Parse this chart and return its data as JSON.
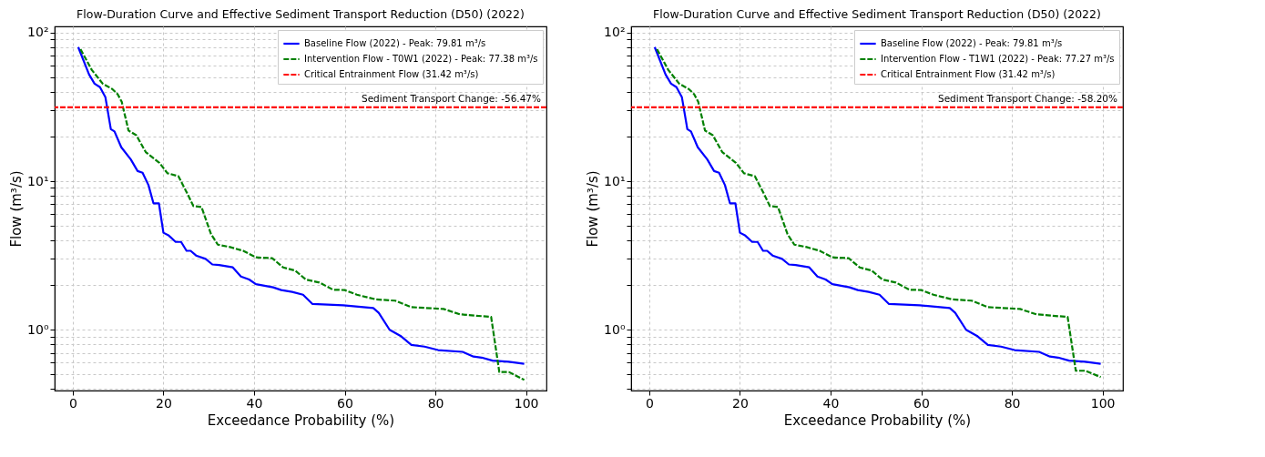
{
  "chart_data": [
    {
      "type": "line",
      "title": "Flow-Duration Curve and Effective Sediment Transport Reduction (D50) (2022)",
      "xlabel": "Exceedance Probability (%)",
      "ylabel": "Flow (m³/s)",
      "log": "y",
      "grid": true,
      "legend": "top right",
      "xlim": [
        -4,
        104.5
      ],
      "xticks": [
        0,
        20,
        40,
        60,
        80,
        100
      ],
      "ylim": [
        0.39,
        110
      ],
      "yticks": [
        {
          "value": 0.4,
          "label": null
        },
        {
          "value": 0.5,
          "label": null
        },
        {
          "value": 0.6,
          "label": null
        },
        {
          "value": 0.7,
          "label": null
        },
        {
          "value": 0.8,
          "label": null
        },
        {
          "value": 0.9,
          "label": null
        },
        {
          "value": 1,
          "label": "10⁰"
        },
        {
          "value": 2,
          "label": null
        },
        {
          "value": 3,
          "label": null
        },
        {
          "value": 4,
          "label": null
        },
        {
          "value": 5,
          "label": null
        },
        {
          "value": 6,
          "label": null
        },
        {
          "value": 7,
          "label": null
        },
        {
          "value": 8,
          "label": null
        },
        {
          "value": 9,
          "label": null
        },
        {
          "value": 10,
          "label": "10¹"
        },
        {
          "value": 20,
          "label": null
        },
        {
          "value": 30,
          "label": null
        },
        {
          "value": 40,
          "label": null
        },
        {
          "value": 50,
          "label": null
        },
        {
          "value": 60,
          "label": null
        },
        {
          "value": 70,
          "label": null
        },
        {
          "value": 80,
          "label": null
        },
        {
          "value": 90,
          "label": null
        },
        {
          "value": 100,
          "label": "10²"
        }
      ],
      "series": [
        {
          "name": "Baseline Flow (2022) - Peak: 79.81 m³/s",
          "color": "#0000ff",
          "line_style": "solid",
          "x": [
            1.2,
            3.6,
            4.8,
            6.0,
            7.2,
            8.4,
            9.2,
            10.7,
            12.8,
            14.3,
            15.4,
            16.7,
            17.8,
            19.0,
            20.0,
            21.2,
            22.7,
            23.9,
            25.1,
            26.0,
            27.2,
            29.3,
            30.8,
            32.3,
            35.3,
            37.1,
            38.9,
            40.4,
            44.2,
            46.0,
            48.4,
            50.8,
            52.9,
            59.7,
            66.3,
            67.5,
            69.9,
            72.3,
            74.7,
            77.6,
            80.6,
            86.0,
            88.4,
            90.2,
            92.6,
            96.2,
            99.6
          ],
          "values": [
            79.8,
            52.2,
            45.3,
            42.9,
            36.7,
            22.4,
            21.6,
            16.9,
            14.0,
            11.7,
            11.4,
            9.4,
            7.1,
            7.1,
            4.5,
            4.3,
            3.9,
            3.9,
            3.4,
            3.4,
            3.16,
            3.0,
            2.75,
            2.73,
            2.63,
            2.28,
            2.18,
            2.03,
            1.93,
            1.85,
            1.8,
            1.72,
            1.49,
            1.46,
            1.4,
            1.3,
            1.0,
            0.91,
            0.79,
            0.77,
            0.73,
            0.71,
            0.66,
            0.65,
            0.62,
            0.61,
            0.59
          ]
        },
        {
          "name": "Intervention Flow - T0W1 (2022) - Peak: 77.38 m³/s",
          "color": "#008000",
          "line_style": "dashed",
          "x": [
            1.7,
            4.2,
            6.6,
            8.7,
            9.9,
            10.8,
            12.3,
            14.0,
            16.1,
            19.1,
            20.9,
            23.3,
            25.4,
            26.6,
            28.4,
            30.5,
            32.0,
            34.7,
            37.6,
            40.4,
            44.0,
            46.4,
            49.1,
            51.4,
            54.4,
            57.4,
            60.0,
            62.7,
            66.9,
            71.1,
            74.7,
            81.8,
            85.4,
            92.3,
            94.1,
            96.2,
            99.6
          ],
          "values": [
            77.4,
            56,
            45.3,
            41.7,
            38.5,
            34.2,
            21.9,
            20.4,
            15.7,
            13.3,
            11.3,
            10.8,
            8.1,
            6.8,
            6.7,
            4.4,
            3.74,
            3.6,
            3.4,
            3.07,
            3.03,
            2.63,
            2.5,
            2.18,
            2.08,
            1.86,
            1.85,
            1.72,
            1.6,
            1.57,
            1.42,
            1.38,
            1.27,
            1.22,
            0.52,
            0.52,
            0.46
          ]
        }
      ],
      "ref_lines": [
        {
          "axis": "y",
          "value": 31.42,
          "label": "Critical Entrainment Flow (31.42 m³/s)",
          "color": "#ff0000",
          "line_style": "dashed"
        }
      ],
      "annotations": [
        "Sediment Transport Change: -56.47%"
      ]
    },
    {
      "type": "line",
      "title": "Flow-Duration Curve and Effective Sediment Transport Reduction (D50) (2022)",
      "xlabel": "Exceedance Probability (%)",
      "ylabel": "Flow (m³/s)",
      "log": "y",
      "grid": true,
      "legend": "top right",
      "xlim": [
        -4,
        104.5
      ],
      "xticks": [
        0,
        20,
        40,
        60,
        80,
        100
      ],
      "ylim": [
        0.39,
        110
      ],
      "yticks": [
        {
          "value": 0.4,
          "label": null
        },
        {
          "value": 0.5,
          "label": null
        },
        {
          "value": 0.6,
          "label": null
        },
        {
          "value": 0.7,
          "label": null
        },
        {
          "value": 0.8,
          "label": null
        },
        {
          "value": 0.9,
          "label": null
        },
        {
          "value": 1,
          "label": "10⁰"
        },
        {
          "value": 2,
          "label": null
        },
        {
          "value": 3,
          "label": null
        },
        {
          "value": 4,
          "label": null
        },
        {
          "value": 5,
          "label": null
        },
        {
          "value": 6,
          "label": null
        },
        {
          "value": 7,
          "label": null
        },
        {
          "value": 8,
          "label": null
        },
        {
          "value": 9,
          "label": null
        },
        {
          "value": 10,
          "label": "10¹"
        },
        {
          "value": 20,
          "label": null
        },
        {
          "value": 30,
          "label": null
        },
        {
          "value": 40,
          "label": null
        },
        {
          "value": 50,
          "label": null
        },
        {
          "value": 60,
          "label": null
        },
        {
          "value": 70,
          "label": null
        },
        {
          "value": 80,
          "label": null
        },
        {
          "value": 90,
          "label": null
        },
        {
          "value": 100,
          "label": "10²"
        }
      ],
      "series": [
        {
          "name": "Baseline Flow (2022) - Peak: 79.81 m³/s",
          "color": "#0000ff",
          "line_style": "solid",
          "x": [
            1.2,
            3.6,
            4.8,
            6.0,
            7.2,
            8.4,
            9.2,
            10.7,
            12.8,
            14.3,
            15.4,
            16.7,
            17.8,
            19.0,
            20.0,
            21.2,
            22.7,
            23.9,
            25.1,
            26.0,
            27.2,
            29.3,
            30.8,
            32.3,
            35.3,
            37.1,
            38.9,
            40.4,
            44.2,
            46.0,
            48.4,
            50.8,
            52.9,
            59.7,
            66.3,
            67.5,
            69.9,
            72.3,
            74.7,
            77.6,
            80.6,
            86.0,
            88.4,
            90.2,
            92.6,
            96.2,
            99.6
          ],
          "values": [
            79.8,
            52.2,
            45.3,
            42.9,
            36.7,
            22.4,
            21.6,
            16.9,
            14.0,
            11.7,
            11.4,
            9.4,
            7.1,
            7.1,
            4.5,
            4.3,
            3.9,
            3.9,
            3.4,
            3.4,
            3.16,
            3.0,
            2.75,
            2.73,
            2.63,
            2.28,
            2.18,
            2.03,
            1.93,
            1.85,
            1.8,
            1.72,
            1.49,
            1.46,
            1.4,
            1.3,
            1.0,
            0.91,
            0.79,
            0.77,
            0.73,
            0.71,
            0.66,
            0.65,
            0.62,
            0.61,
            0.59
          ]
        },
        {
          "name": "Intervention Flow - T1W1 (2022) - Peak: 77.27 m³/s",
          "color": "#008000",
          "line_style": "dashed",
          "x": [
            1.7,
            4.2,
            6.6,
            8.7,
            9.9,
            10.8,
            12.3,
            14.0,
            16.1,
            19.1,
            20.9,
            23.3,
            25.4,
            26.6,
            28.4,
            30.5,
            32.0,
            34.7,
            37.6,
            40.4,
            44.0,
            46.4,
            49.1,
            51.4,
            54.4,
            57.4,
            60.0,
            62.7,
            66.9,
            71.1,
            74.7,
            81.8,
            85.4,
            92.3,
            94.1,
            96.2,
            99.6
          ],
          "values": [
            77.3,
            56,
            45.3,
            41.7,
            38.5,
            34.2,
            21.9,
            20.4,
            15.7,
            13.3,
            11.3,
            10.8,
            8.1,
            6.8,
            6.7,
            4.4,
            3.74,
            3.6,
            3.4,
            3.07,
            3.03,
            2.63,
            2.5,
            2.18,
            2.08,
            1.86,
            1.85,
            1.72,
            1.6,
            1.57,
            1.42,
            1.38,
            1.27,
            1.22,
            0.53,
            0.53,
            0.48
          ]
        }
      ],
      "ref_lines": [
        {
          "axis": "y",
          "value": 31.42,
          "label": "Critical Entrainment Flow (31.42 m³/s)",
          "color": "#ff0000",
          "line_style": "dashed"
        }
      ],
      "annotations": [
        "Sediment Transport Change: -58.20%"
      ]
    }
  ]
}
